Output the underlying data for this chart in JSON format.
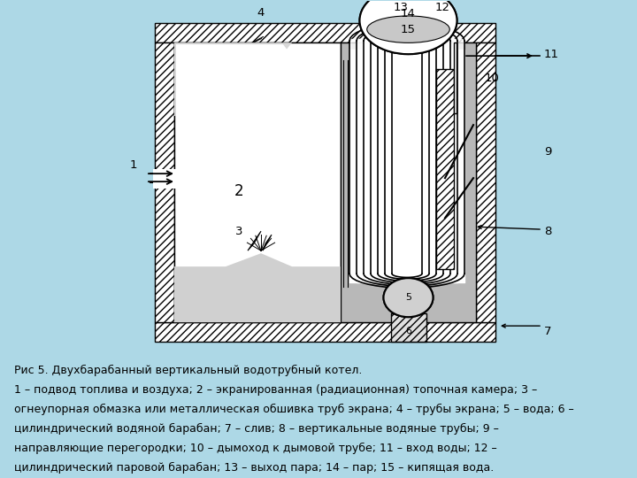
{
  "background_color": "#add8e6",
  "diagram_bg": "#a8a8a8",
  "wall_hatch_color": "#ffffff",
  "chamber_white": "#ffffff",
  "tube_gray": "#c0c0c0",
  "title_text": "Рис 5. Двухбарабанный вертикальный водотрубный котел.",
  "caption_lines": [
    "1 – подвод топлива и воздуха; 2 – экранированная (радиационная) топочная камера; 3 –",
    "огнеупорная обмазка или металлическая обшивка труб экрана; 4 – трубы экрана; 5 – вода; 6 –",
    "цилиндрический водяной барабан; 7 – слив; 8 – вертикальные водяные трубы; 9 –",
    "направляющие перегородки; 10 – дымоход к дымовой трубе; 11 – вход воды; 12 –",
    "цилиндрический паровой барабан; 13 – выход пара; 14 – пар; 15 – кипящая вода."
  ],
  "font_size_title": 9.0,
  "font_size_caption": 9.0,
  "figsize": [
    7.2,
    5.4
  ],
  "dpi": 100
}
